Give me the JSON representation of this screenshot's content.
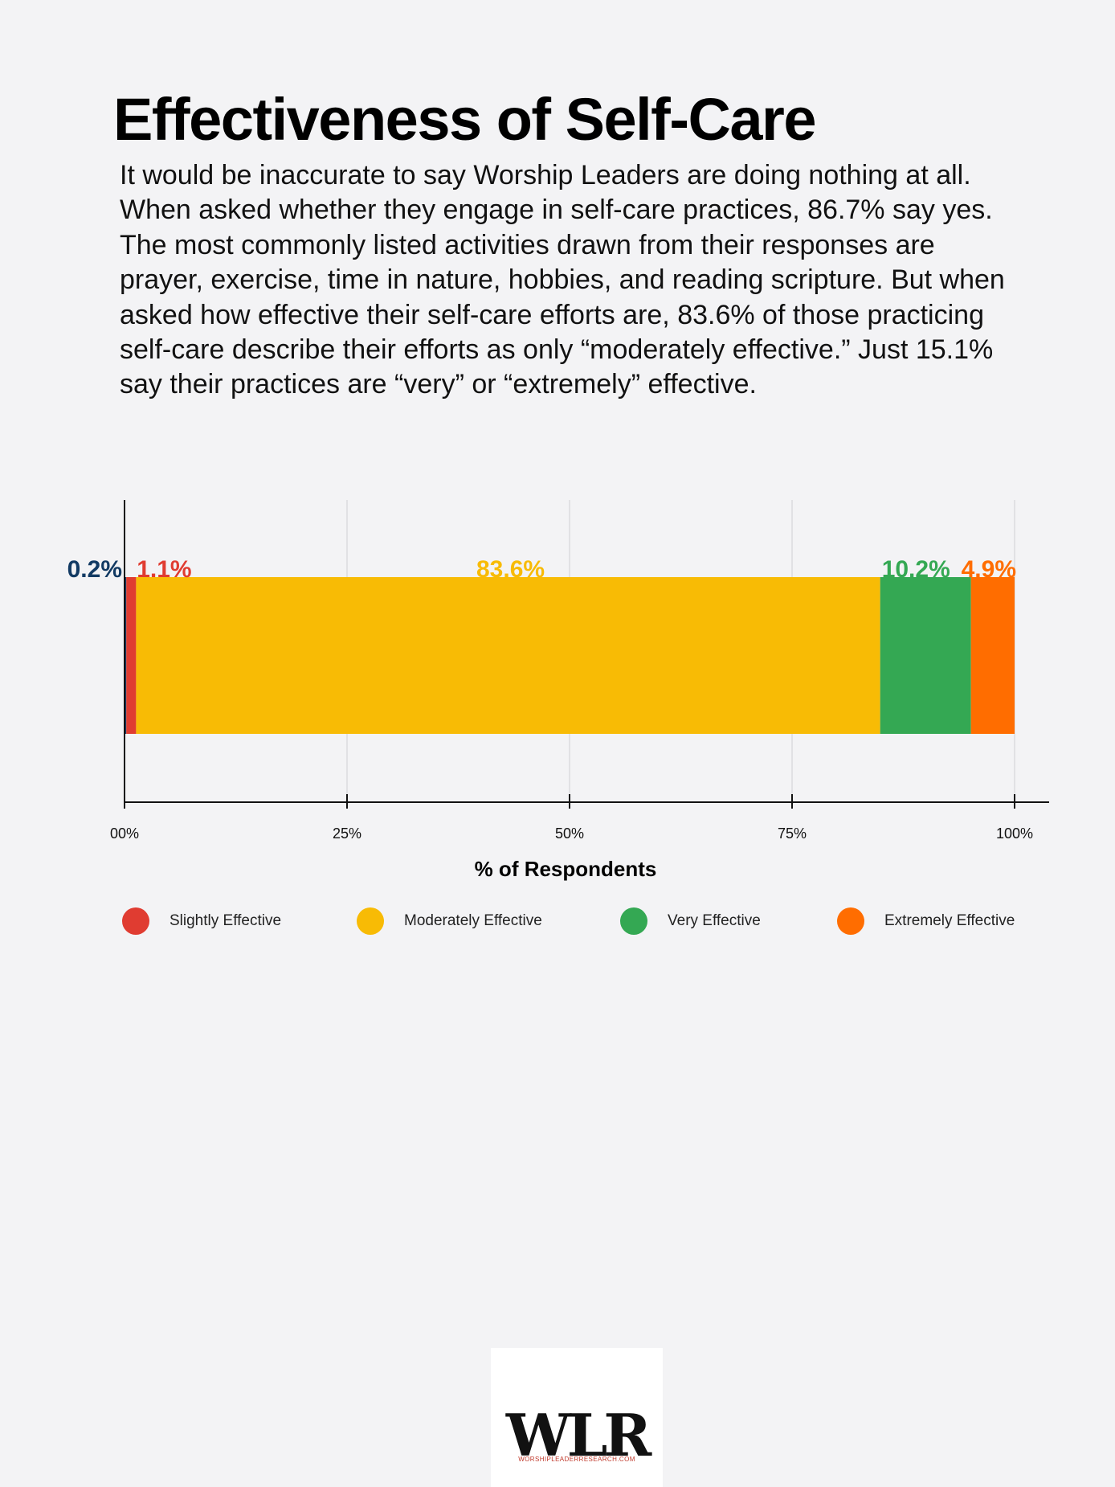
{
  "title": "Effectiveness of Self-Care",
  "paragraph": "It would be inaccurate to say Worship Leaders are doing nothing at all. When asked whether they engage in self-care practices, 86.7% say yes. The most commonly listed activities drawn from their responses are prayer, exercise, time in nature, hobbies, and reading scripture. But when asked how effective their self-care efforts are, 83.6% of those practicing self-care describe their efforts as only “moderately effective.” Just 15.1% say their practices are “very” or “extremely” effective.",
  "chart_data": {
    "type": "bar",
    "orientation": "horizontal",
    "stacked": true,
    "xlabel": "% of Respondents",
    "xlim": [
      0,
      100
    ],
    "x_ticks": [
      0,
      25,
      50,
      75,
      100
    ],
    "x_tick_labels": [
      "00%",
      "25%",
      "50%",
      "75%",
      "100%"
    ],
    "grid": true,
    "legend_position": "bottom",
    "series": [
      {
        "values": [
          0.2
        ],
        "label": "0.2%",
        "color": "#123a63"
      },
      {
        "name": "Slightly Effective",
        "values": [
          1.1
        ],
        "label": "1.1%",
        "color": "#e03c31"
      },
      {
        "name": "Moderately Effective",
        "values": [
          83.6
        ],
        "label": "83.6%",
        "color": "#f8bb05"
      },
      {
        "name": "Very Effective",
        "values": [
          10.2
        ],
        "label": "10.2%",
        "color": "#34a853"
      },
      {
        "name": "Extremely Effective",
        "values": [
          4.9
        ],
        "label": "4.9%",
        "color": "#ff6d00"
      }
    ]
  },
  "legend": [
    {
      "label": "Slightly Effective",
      "color": "#e03c31"
    },
    {
      "label": "Moderately Effective",
      "color": "#f8bb05"
    },
    {
      "label": "Very Effective",
      "color": "#34a853"
    },
    {
      "label": "Extremely Effective",
      "color": "#ff6d00"
    }
  ],
  "logo": {
    "mark": "WLR",
    "tagline": "WORSHIPLEADERRESEARCH.COM"
  }
}
